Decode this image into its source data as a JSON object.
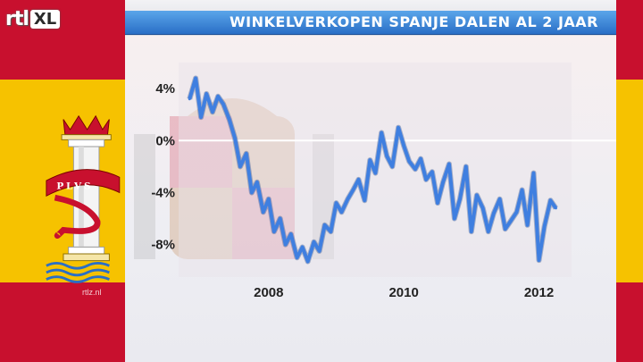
{
  "logo": {
    "rtl": "rtl",
    "xl": "XL"
  },
  "watermark": "rtlz.nl",
  "emblem": {
    "motto": "PLVS"
  },
  "colors": {
    "line": "#3f7fe0",
    "title_bar": "#2a6fc6",
    "flag_red": "#c8102e",
    "flag_yellow": "#f6c200"
  },
  "chart_data": {
    "type": "line",
    "title": "WINKELVERKOPEN SPANJE DALEN AL 2 JAAR",
    "xlabel": "",
    "ylabel": "",
    "x_ticks": [
      "2008",
      "2010",
      "2012"
    ],
    "y_ticks": [
      "4%",
      "0%",
      "-4%",
      "-8%"
    ],
    "ylim": [
      -10.5,
      6
    ],
    "xlim": [
      2006.8,
      2012.35
    ],
    "grid": {
      "horizontal_at_zero": true
    },
    "series": [
      {
        "x": [
          2006.83,
          2006.92,
          2007.0,
          2007.08,
          2007.17,
          2007.25,
          2007.33,
          2007.42,
          2007.5,
          2007.58,
          2007.67,
          2007.75,
          2007.83,
          2007.92,
          2008.0,
          2008.08,
          2008.17,
          2008.25,
          2008.33,
          2008.42,
          2008.5,
          2008.58,
          2008.67,
          2008.75,
          2008.83,
          2008.92,
          2009.0,
          2009.08,
          2009.17,
          2009.25,
          2009.33,
          2009.42,
          2009.5,
          2009.58,
          2009.67,
          2009.75,
          2009.83,
          2009.92,
          2010.0,
          2010.08,
          2010.17,
          2010.25,
          2010.33,
          2010.42,
          2010.5,
          2010.58,
          2010.67,
          2010.75,
          2010.83,
          2010.92,
          2011.0,
          2011.08,
          2011.17,
          2011.25,
          2011.33,
          2011.42,
          2011.5,
          2011.58,
          2011.67,
          2011.75,
          2011.83,
          2011.92,
          2012.0,
          2012.08,
          2012.17,
          2012.25
        ],
        "values": [
          3.2,
          4.8,
          1.8,
          3.6,
          2.2,
          3.4,
          2.8,
          1.6,
          0.2,
          -2.0,
          -1.0,
          -4.0,
          -3.2,
          -5.5,
          -4.5,
          -7.0,
          -6.0,
          -8.0,
          -7.2,
          -9.0,
          -8.2,
          -9.3,
          -7.8,
          -8.5,
          -6.5,
          -7.0,
          -4.8,
          -5.5,
          -4.5,
          -3.8,
          -3.0,
          -4.6,
          -1.5,
          -2.5,
          0.6,
          -1.2,
          -2.0,
          1.0,
          -0.4,
          -1.6,
          -2.2,
          -1.4,
          -3.0,
          -2.4,
          -4.8,
          -3.2,
          -1.8,
          -6.0,
          -4.5,
          -2.0,
          -7.0,
          -4.2,
          -5.2,
          -7.0,
          -5.6,
          -4.5,
          -6.8,
          -6.2,
          -5.5,
          -3.8,
          -6.5,
          -2.5,
          -9.2,
          -6.6,
          -4.6,
          -5.2
        ]
      }
    ]
  }
}
